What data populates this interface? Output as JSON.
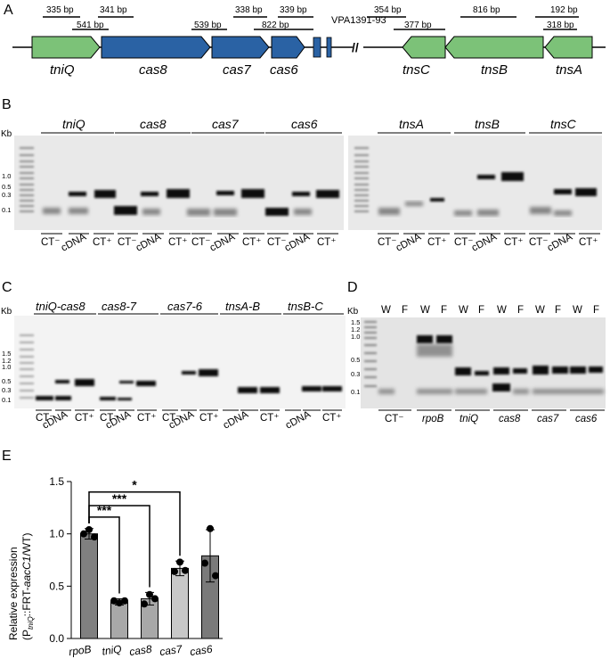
{
  "figure": {
    "panels": {
      "a": "A",
      "b": "B",
      "c": "C",
      "d": "D",
      "e": "E"
    },
    "a": {
      "left_genes": [
        "tniQ",
        "cas8",
        "cas7",
        "cas6"
      ],
      "right_genes": [
        "tnsC",
        "tnsB",
        "tnsA"
      ],
      "vpa_label": "VPA1391-93",
      "left_amplicons": [
        "335 bp",
        "341 bp",
        "541 bp",
        "539 bp",
        "338 bp",
        "339 bp",
        "822 bp"
      ],
      "right_amplicons": [
        "354 bp",
        "377 bp",
        "816 bp",
        "192 bp",
        "318 bp"
      ],
      "break_mark": "//"
    },
    "b": {
      "kb": "Kb",
      "ladder": [
        "1.0",
        "0.5",
        "0.3",
        "0.1"
      ],
      "left_genes": [
        "tniQ",
        "cas8",
        "cas7",
        "cas6"
      ],
      "right_genes": [
        "tnsA",
        "tnsB",
        "tnsC"
      ],
      "lanes": [
        "CT⁻",
        "cDNA",
        "CT⁺"
      ]
    },
    "c": {
      "kb": "Kb",
      "ladder": [
        "1.5",
        "1.2",
        "1.0",
        "0.5",
        "0.3",
        "0.1"
      ],
      "genes": [
        "tniQ-cas8",
        "cas8-7",
        "cas7-6",
        "tnsA-B",
        "tnsB-C"
      ],
      "lanes": [
        "CT⁻",
        "cDNA",
        "CT⁺"
      ]
    },
    "d": {
      "kb": "Kb",
      "ladder": [
        "1.5",
        "1.2",
        "1.0",
        "0.5",
        "0.3",
        "0.1"
      ],
      "wf": [
        "W",
        "F"
      ],
      "groups": [
        "CT⁻",
        "rpoB",
        "tniQ",
        "cas8",
        "cas7",
        "cas6"
      ]
    },
    "e": {
      "ylabel_line1": "Relative expression",
      "ylabel_p": "(P",
      "ylabel_sub": "tniQ",
      "ylabel_mid": "::FRT-",
      "ylabel_italic": "aacC1",
      "ylabel_end": "/WT)",
      "sig": [
        "***",
        "***",
        "*"
      ]
    }
  },
  "chart_data": {
    "type": "bar",
    "categories": [
      "rpoB",
      "tniQ",
      "cas8",
      "cas7",
      "cas6"
    ],
    "values": [
      1.0,
      0.35,
      0.38,
      0.67,
      0.79
    ],
    "errors": [
      0.05,
      0.03,
      0.06,
      0.07,
      0.25
    ],
    "points": [
      [
        1.04,
        1.0,
        0.97
      ],
      [
        0.34,
        0.36,
        0.36
      ],
      [
        0.42,
        0.33,
        0.38
      ],
      [
        0.73,
        0.64,
        0.65
      ],
      [
        1.05,
        0.72,
        0.6
      ]
    ],
    "colors": [
      "#808080",
      "#a8a8a8",
      "#a8a8a8",
      "#c8c8c8",
      "#7a7a7a"
    ],
    "ylim": [
      0,
      1.5
    ],
    "yticks": [
      "0.0",
      "0.5",
      "1.0",
      "1.5"
    ],
    "ylabel": "Relative expression (PtniQ::FRT-aacC1/WT)",
    "significance": [
      {
        "from": "rpoB",
        "to": "tniQ",
        "label": "***"
      },
      {
        "from": "rpoB",
        "to": "cas8",
        "label": "***"
      },
      {
        "from": "rpoB",
        "to": "cas7",
        "label": "*"
      }
    ]
  }
}
